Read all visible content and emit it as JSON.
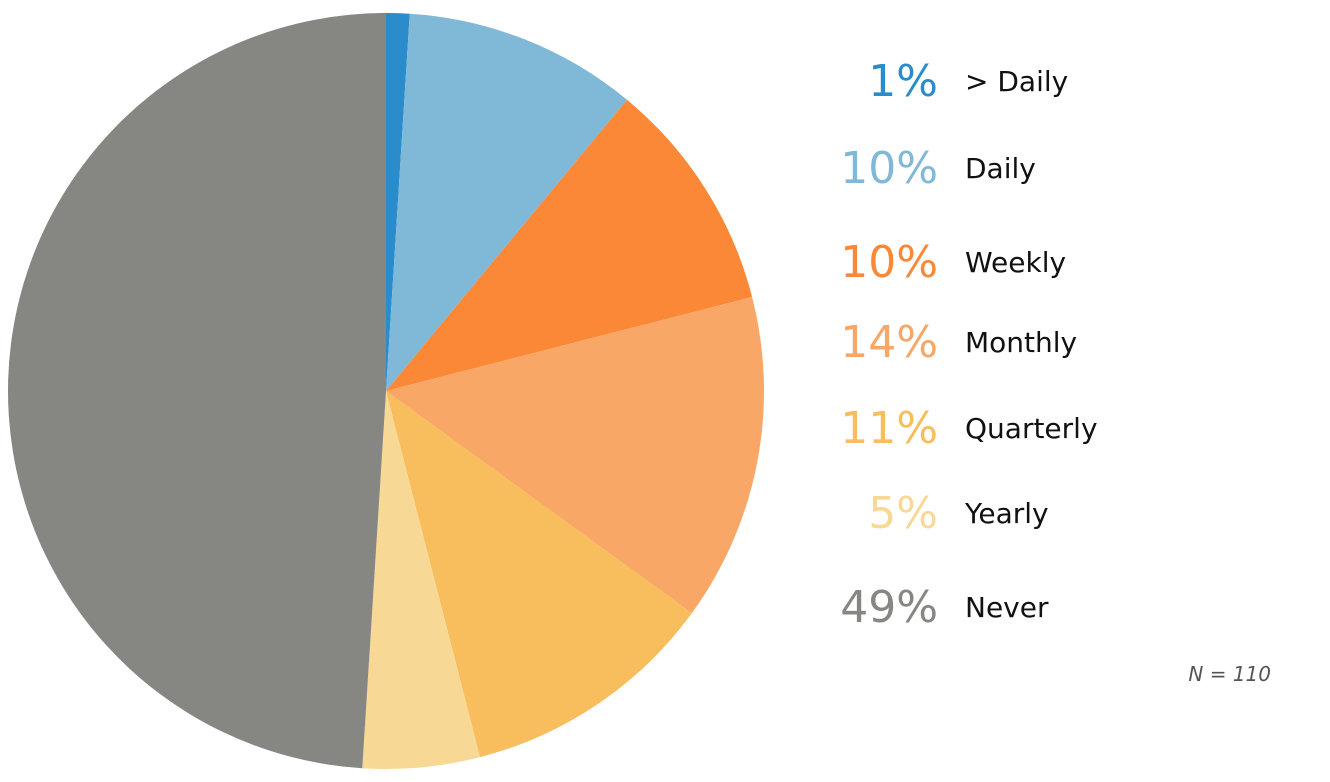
{
  "chart_data": {
    "type": "pie",
    "slices": [
      {
        "label": "> Daily",
        "value": 1,
        "percent_label": "1%",
        "color": "#2b8ccb"
      },
      {
        "label": "Daily",
        "value": 10,
        "percent_label": "10%",
        "color": "#80b8d8"
      },
      {
        "label": "Weekly",
        "value": 10,
        "percent_label": "10%",
        "color": "#fb8836"
      },
      {
        "label": "Monthly",
        "value": 14,
        "percent_label": "14%",
        "color": "#f8a767"
      },
      {
        "label": "Quarterly",
        "value": 11,
        "percent_label": "11%",
        "color": "#f8bd5c"
      },
      {
        "label": "Yearly",
        "value": 5,
        "percent_label": "5%",
        "color": "#f7d895"
      },
      {
        "label": "Never",
        "value": 49,
        "percent_label": "49%",
        "color": "#868682"
      }
    ],
    "start_angle_deg": 0,
    "direction": "clockwise",
    "legend_position": "right",
    "note": "N = 110"
  }
}
